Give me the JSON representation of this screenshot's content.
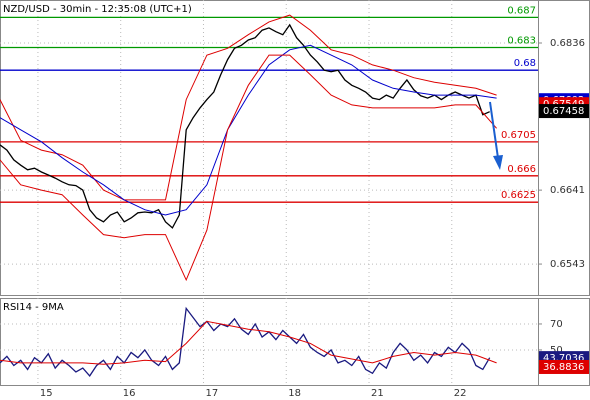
{
  "chart_data": [
    {
      "type": "line",
      "title": "NZD/USD - 30min - 12:35:08 (UTC+1)",
      "x": [
        0,
        4,
        8,
        12,
        16,
        20,
        24,
        28,
        32,
        36,
        40,
        44,
        48,
        52,
        56,
        60,
        64,
        68,
        72,
        76,
        80,
        84,
        88,
        92,
        96,
        100,
        104,
        108,
        112,
        116,
        120,
        124,
        128,
        132,
        136,
        140,
        144,
        148,
        152,
        156,
        160,
        164,
        168,
        172,
        176,
        180,
        184,
        188,
        192,
        196,
        200,
        204,
        208,
        212,
        216,
        220,
        224,
        228,
        232,
        236,
        240,
        244,
        248,
        252,
        256,
        260,
        264,
        268,
        272,
        276,
        280,
        284
      ],
      "xlim": [
        0,
        312
      ],
      "xticks": [
        22,
        70,
        118,
        166,
        214,
        262
      ],
      "ylim": [
        0.6502,
        0.6893
      ],
      "yticks": [
        0.6836,
        0.6641,
        0.6543
      ],
      "grid": true,
      "series": [
        {
          "color": "#000000",
          "values": [
            0.6701,
            0.6694,
            0.6681,
            0.6674,
            0.6668,
            0.667,
            0.6665,
            0.6661,
            0.6657,
            0.6652,
            0.6648,
            0.6647,
            0.6641,
            0.6615,
            0.6604,
            0.6599,
            0.6608,
            0.6612,
            0.6599,
            0.6604,
            0.6611,
            0.6612,
            0.6611,
            0.6615,
            0.6599,
            0.6591,
            0.6608,
            0.6721,
            0.6737,
            0.675,
            0.6761,
            0.6771,
            0.6794,
            0.6814,
            0.6829,
            0.6833,
            0.684,
            0.6843,
            0.6853,
            0.6856,
            0.6851,
            0.6847,
            0.686,
            0.6843,
            0.6833,
            0.682,
            0.6811,
            0.68,
            0.6798,
            0.68,
            0.6787,
            0.678,
            0.6776,
            0.6771,
            0.6763,
            0.6761,
            0.6767,
            0.6763,
            0.6776,
            0.6787,
            0.6774,
            0.6766,
            0.6763,
            0.6767,
            0.6761,
            0.6767,
            0.6771,
            0.6767,
            0.6763,
            0.6767,
            0.6741,
            0.6745
          ]
        },
        {
          "color": "#dd0000",
          "x": [
            0,
            12,
            24,
            36,
            48,
            60,
            72,
            84,
            96,
            108,
            120,
            132,
            144,
            156,
            168,
            180,
            192,
            204,
            216,
            228,
            240,
            252,
            264,
            276,
            288
          ],
          "values": [
            0.6761,
            0.6707,
            0.6694,
            0.6688,
            0.6674,
            0.6641,
            0.6628,
            0.6628,
            0.6628,
            0.6761,
            0.682,
            0.6829,
            0.6847,
            0.6864,
            0.6873,
            0.6853,
            0.6827,
            0.682,
            0.6807,
            0.68,
            0.679,
            0.6784,
            0.678,
            0.6776,
            0.6767
          ]
        },
        {
          "color": "#0000cc",
          "x": [
            0,
            12,
            24,
            36,
            48,
            60,
            72,
            84,
            96,
            108,
            120,
            132,
            144,
            156,
            168,
            180,
            192,
            204,
            216,
            228,
            240,
            252,
            264,
            276,
            288
          ],
          "values": [
            0.6737,
            0.6721,
            0.6705,
            0.6684,
            0.6665,
            0.6648,
            0.6628,
            0.6615,
            0.6608,
            0.6615,
            0.6648,
            0.6721,
            0.6767,
            0.6807,
            0.6827,
            0.6833,
            0.682,
            0.6807,
            0.6787,
            0.6776,
            0.6771,
            0.6767,
            0.6767,
            0.6767,
            0.6763
          ]
        },
        {
          "color": "#dd0000",
          "x": [
            0,
            12,
            24,
            36,
            48,
            60,
            72,
            84,
            96,
            108,
            120,
            132,
            144,
            156,
            168,
            180,
            192,
            204,
            216,
            228,
            240,
            252,
            264,
            276,
            288
          ],
          "values": [
            0.6681,
            0.6648,
            0.6641,
            0.6635,
            0.6608,
            0.6582,
            0.6578,
            0.6582,
            0.6582,
            0.6522,
            0.6588,
            0.6721,
            0.678,
            0.682,
            0.682,
            0.6794,
            0.6767,
            0.6754,
            0.675,
            0.675,
            0.675,
            0.675,
            0.6754,
            0.6754,
            0.6723
          ]
        }
      ],
      "levels": [
        {
          "value": 0.687,
          "color": "#009900"
        },
        {
          "value": 0.683,
          "color": "#009900"
        },
        {
          "value": 0.68,
          "color": "#0000cc"
        },
        {
          "value": 0.6705,
          "color": "#dd0000"
        },
        {
          "value": 0.666,
          "color": "#dd0000"
        },
        {
          "value": 0.6625,
          "color": "#dd0000"
        }
      ],
      "price_labels": [
        {
          "value": 0.67602,
          "color": "#0000cc"
        },
        {
          "value": 0.67549,
          "color": "#dd0000"
        },
        {
          "value": 0.67458,
          "color": "#000000"
        }
      ]
    },
    {
      "type": "line",
      "title": "RSI14 - 9MA",
      "x": [
        0,
        4,
        8,
        12,
        16,
        20,
        24,
        28,
        32,
        36,
        40,
        44,
        48,
        52,
        56,
        60,
        64,
        68,
        72,
        76,
        80,
        84,
        88,
        92,
        96,
        100,
        104,
        108,
        112,
        116,
        120,
        124,
        128,
        132,
        136,
        140,
        144,
        148,
        152,
        156,
        160,
        164,
        168,
        172,
        176,
        180,
        184,
        188,
        192,
        196,
        200,
        204,
        208,
        212,
        216,
        220,
        224,
        228,
        232,
        236,
        240,
        244,
        248,
        252,
        256,
        260,
        264,
        268,
        272,
        276,
        280,
        284
      ],
      "xlim": [
        0,
        312
      ],
      "xticks": [
        {
          "value": 22,
          "label": "15"
        },
        {
          "value": 70,
          "label": "16"
        },
        {
          "value": 118,
          "label": "17"
        },
        {
          "value": 166,
          "label": "18"
        },
        {
          "value": 214,
          "label": "21"
        },
        {
          "value": 262,
          "label": "22"
        }
      ],
      "ylim": [
        23,
        90
      ],
      "yticks": [
        50,
        70
      ],
      "grid": true,
      "series": [
        {
          "color": "#1a1a80",
          "values": [
            40,
            45,
            38,
            42,
            35,
            44,
            40,
            47,
            36,
            42,
            38,
            33,
            36,
            30,
            38,
            42,
            35,
            45,
            40,
            48,
            44,
            50,
            42,
            38,
            45,
            35,
            40,
            82,
            75,
            68,
            72,
            65,
            70,
            68,
            74,
            66,
            62,
            70,
            60,
            64,
            58,
            65,
            60,
            55,
            62,
            52,
            48,
            45,
            50,
            40,
            42,
            38,
            45,
            35,
            32,
            40,
            36,
            48,
            55,
            50,
            42,
            46,
            40,
            48,
            45,
            52,
            48,
            55,
            50,
            38,
            35,
            44
          ]
        },
        {
          "color": "#dd0000",
          "x": [
            0,
            12,
            24,
            36,
            48,
            60,
            72,
            84,
            96,
            108,
            120,
            132,
            144,
            156,
            168,
            180,
            192,
            204,
            216,
            228,
            240,
            252,
            264,
            276,
            288
          ],
          "values": [
            42,
            40,
            40,
            40,
            40,
            39,
            40,
            42,
            41,
            55,
            72,
            69,
            66,
            64,
            60,
            55,
            46,
            43,
            40,
            45,
            48,
            46,
            48,
            46,
            40
          ]
        }
      ],
      "price_labels": [
        {
          "value": 43.7036,
          "color": "#1a1a80"
        },
        {
          "value": 36.8836,
          "color": "#dd0000"
        }
      ]
    }
  ]
}
